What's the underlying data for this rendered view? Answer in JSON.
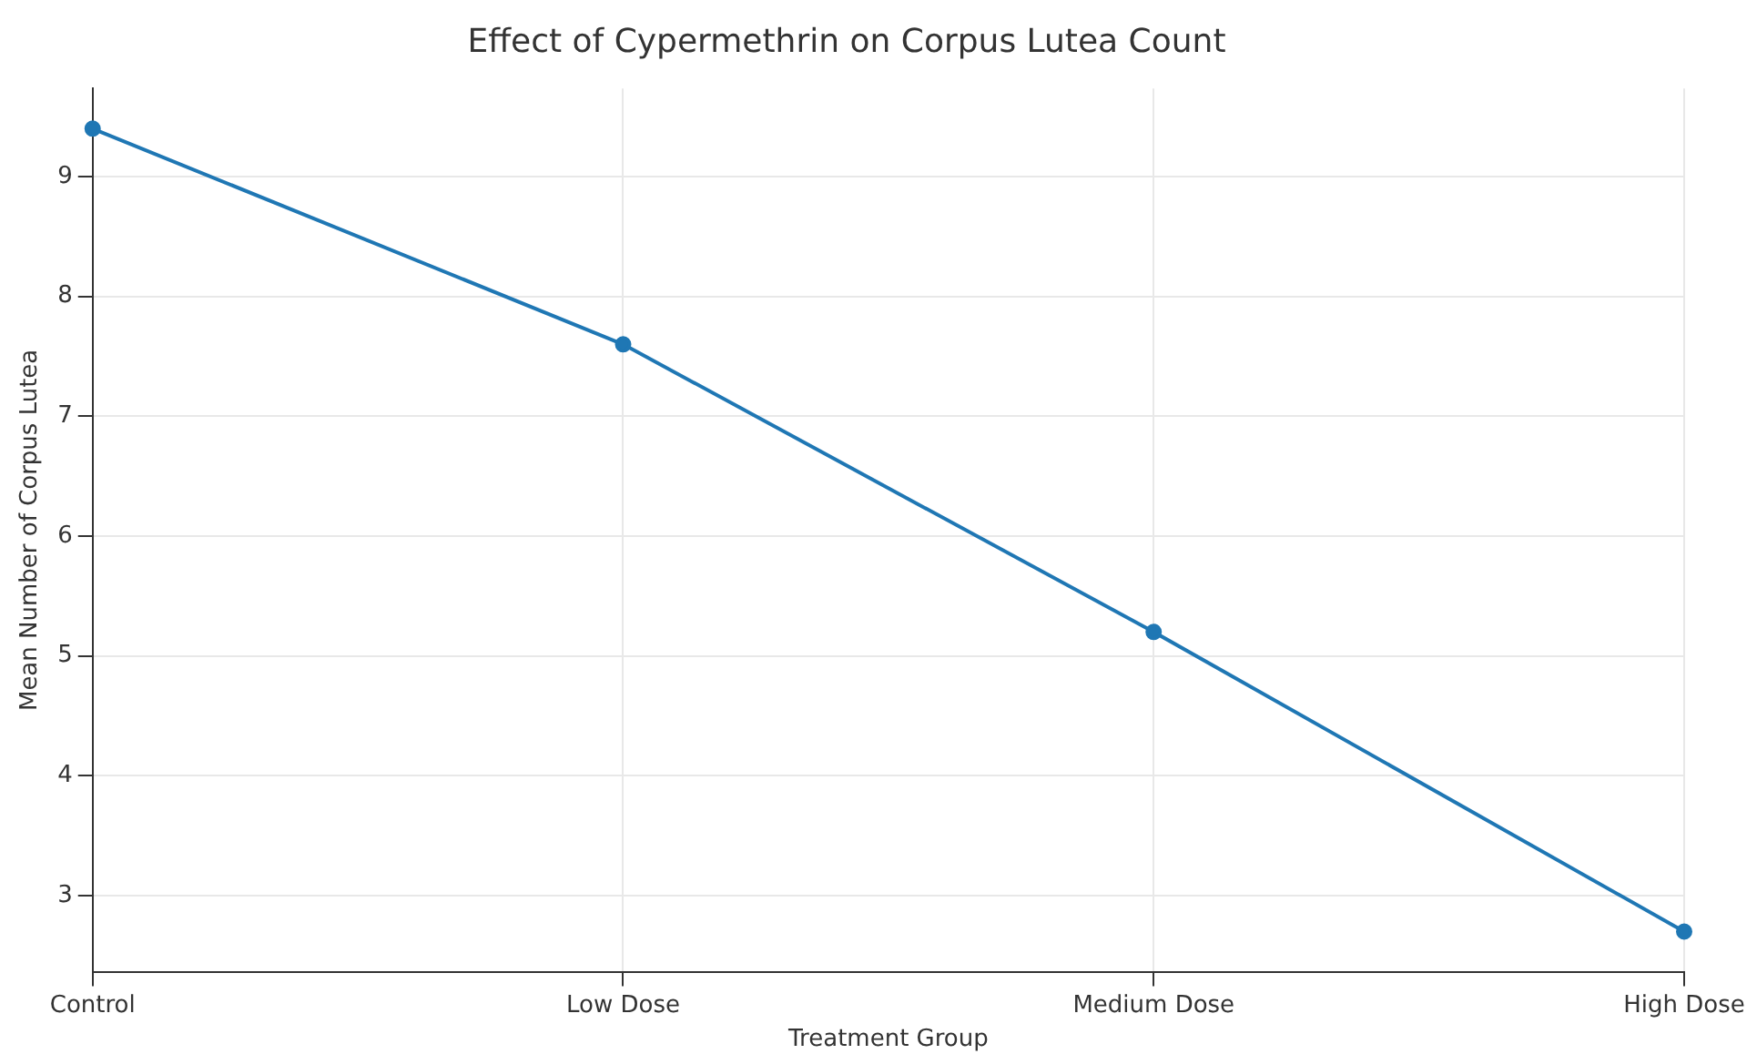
{
  "chart_data": {
    "type": "line",
    "title": "Effect of Cypermethrin on Corpus Lutea Count",
    "xlabel": "Treatment Group",
    "ylabel": "Mean Number of Corpus Lutea",
    "categories": [
      "Control",
      "Low Dose",
      "Medium Dose",
      "High Dose"
    ],
    "series": [
      {
        "color": "#1f77b4",
        "values": [
          9.4,
          7.6,
          5.2,
          2.7
        ]
      }
    ],
    "ylim": [
      2.365,
      9.735
    ],
    "yticks": [
      3,
      4,
      5,
      6,
      7,
      8,
      9
    ],
    "grid": true,
    "legend": false,
    "marker": "circle",
    "line_style": "solid"
  }
}
